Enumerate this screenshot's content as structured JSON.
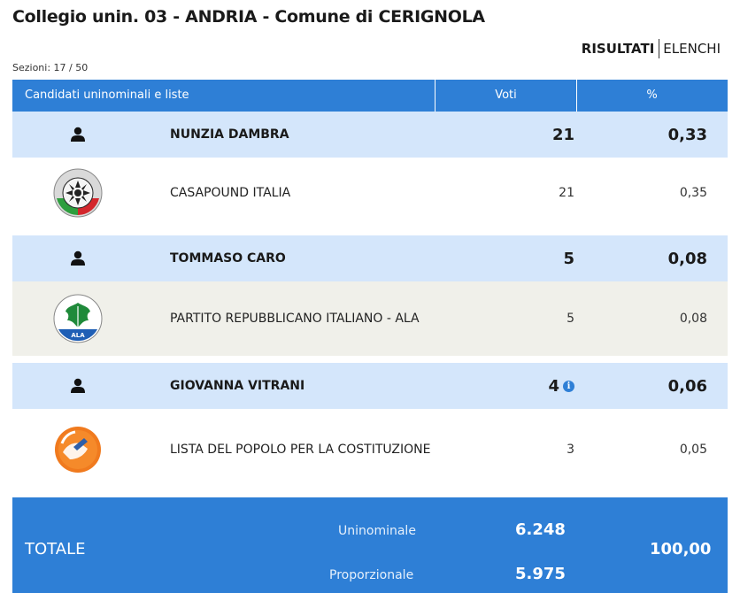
{
  "page": {
    "title": "Collegio unin. 03 - ANDRIA - Comune di CERIGNOLA",
    "view_active": "RISULTATI",
    "view_other": "ELENCHI",
    "sezioni": "Sezioni: 17 / 50"
  },
  "table": {
    "headers": {
      "candidates": "Candidati uninominali e liste",
      "votes": "Voti",
      "percent": "%"
    },
    "rows": [
      {
        "kind": "candidate",
        "name": "NUNZIA DAMBRA",
        "votes": "21",
        "percent": "0,33",
        "icon": "person-icon"
      },
      {
        "kind": "list",
        "name": "CASAPOUND ITALIA",
        "votes": "21",
        "percent": "0,35",
        "icon": "casapound-logo-icon"
      },
      {
        "kind": "candidate",
        "name": "TOMMASO CARO",
        "votes": "5",
        "percent": "0,08",
        "icon": "person-icon"
      },
      {
        "kind": "list",
        "name": "PARTITO REPUBBLICANO ITALIANO - ALA",
        "votes": "5",
        "percent": "0,08",
        "icon": "pri-ala-logo-icon",
        "logo_text": "ALA"
      },
      {
        "kind": "candidate",
        "name": "GIOVANNA VITRANI",
        "votes": "4",
        "percent": "0,06",
        "icon": "person-icon",
        "info": "i"
      },
      {
        "kind": "list",
        "name": "LISTA DEL POPOLO PER LA COSTITUZIONE",
        "votes": "3",
        "percent": "0,05",
        "icon": "lista-popolo-logo-icon"
      }
    ]
  },
  "totals": {
    "label": "TOTALE",
    "uninominale_label": "Uninominale",
    "uninominale_votes": "6.248",
    "proporzionale_label": "Proporzionale",
    "proporzionale_votes": "5.975",
    "percent": "100,00"
  },
  "colors": {
    "header_blue": "#2e7fd6",
    "candidate_row": "#d4e6fb",
    "list_row_alt": "#f0f0ea"
  }
}
